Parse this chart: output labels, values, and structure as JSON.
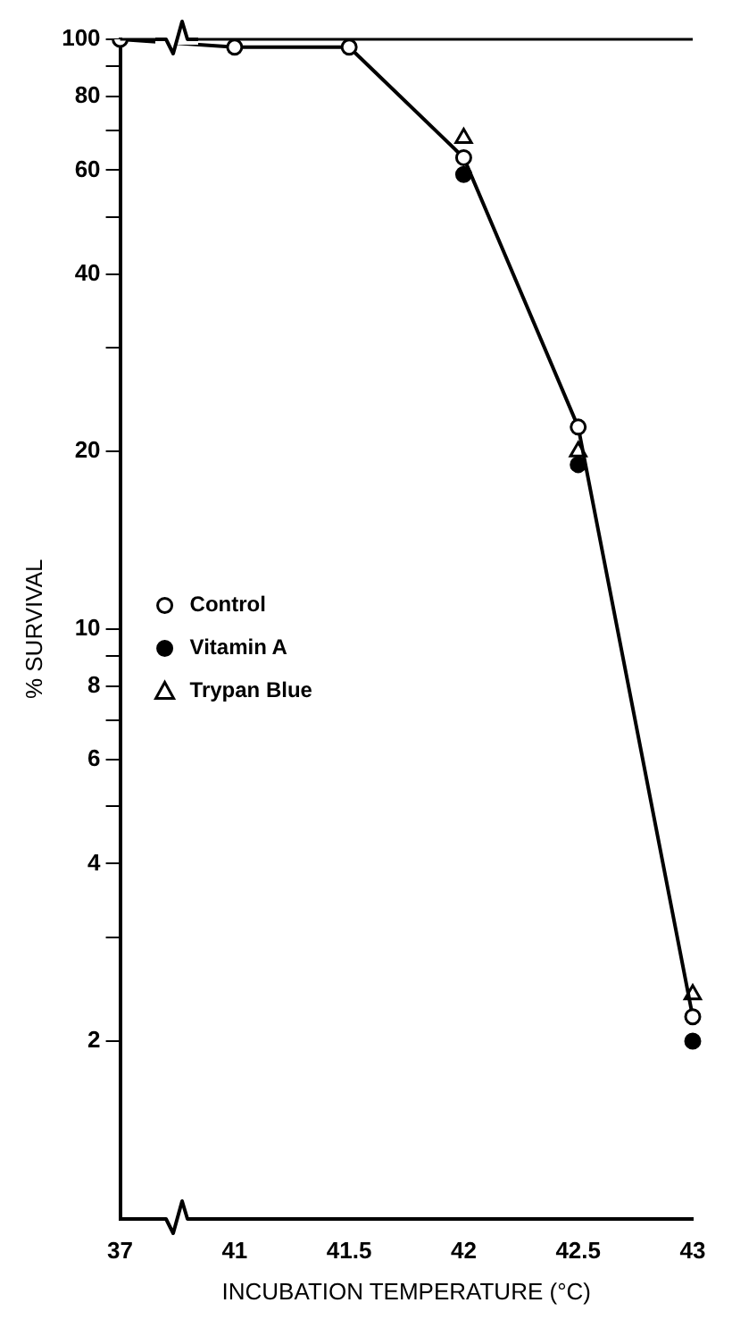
{
  "chart_data": {
    "type": "line",
    "xlabel": "INCUBATION TEMPERATURE (°C)",
    "ylabel": "% SURVIVAL",
    "categories": [
      "37",
      "41",
      "41.5",
      "42",
      "42.5",
      "43"
    ],
    "log": "y",
    "ylim": [
      1,
      100
    ],
    "yticks": [
      {
        "value": 2,
        "label": "2"
      },
      {
        "value": 3,
        "label": null
      },
      {
        "value": 4,
        "label": "4"
      },
      {
        "value": 5,
        "label": null
      },
      {
        "value": 6,
        "label": "6"
      },
      {
        "value": 7,
        "label": null
      },
      {
        "value": 8,
        "label": "8"
      },
      {
        "value": 9,
        "label": null
      },
      {
        "value": 10,
        "label": "10"
      },
      {
        "value": 20,
        "label": "20"
      },
      {
        "value": 30,
        "label": null
      },
      {
        "value": 40,
        "label": "40"
      },
      {
        "value": 50,
        "label": null
      },
      {
        "value": 60,
        "label": "60"
      },
      {
        "value": 70,
        "label": null
      },
      {
        "value": 80,
        "label": "80"
      },
      {
        "value": 90,
        "label": null
      },
      {
        "value": 100,
        "label": "100"
      }
    ],
    "grid": false,
    "legend": "left",
    "ref_lines": [
      {
        "axis": "y",
        "value": 100,
        "color": "#000000"
      }
    ],
    "series": [
      {
        "name": "Control",
        "type": "line",
        "marker": "circle",
        "color": "#000000",
        "values": [
          100,
          97,
          97,
          63,
          22,
          2.2
        ]
      },
      {
        "name": "Vitamin A",
        "type": "scatter",
        "marker": "circle",
        "color": "#000000",
        "values": [
          null,
          null,
          null,
          59,
          19,
          2.0
        ]
      },
      {
        "name": "Trypan Blue",
        "type": "scatter",
        "marker": "triangle",
        "color": "#000000",
        "values": [
          null,
          null,
          null,
          68,
          20,
          2.4
        ]
      }
    ]
  }
}
